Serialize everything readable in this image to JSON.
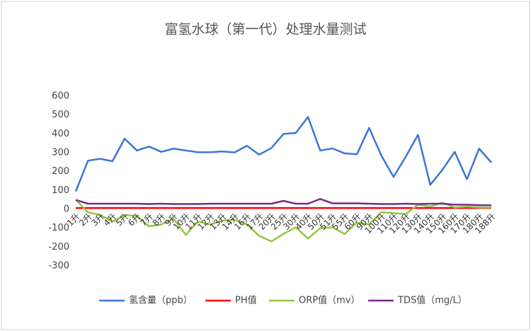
{
  "chart_data": {
    "type": "line",
    "title": "富氢水球（第一代）处理水量测试",
    "categories": [
      "1升",
      "2升",
      "3升",
      "4升",
      "5升",
      "6升",
      "7升",
      "8升",
      "9升",
      "10升",
      "11升",
      "12升",
      "13升",
      "14升",
      "16升",
      "17升",
      "20升",
      "25升",
      "30升",
      "40升",
      "50升",
      "51升",
      "55升",
      "60升",
      "90升",
      "100升",
      "110升",
      "120升",
      "130升",
      "140升",
      "150升",
      "160升",
      "170升",
      "180升",
      "188升"
    ],
    "series": [
      {
        "name": "氢含量（ppb）",
        "color": "#3a76db",
        "values": [
          95,
          258,
          268,
          255,
          375,
          312,
          333,
          305,
          322,
          312,
          303,
          303,
          307,
          302,
          337,
          290,
          325,
          400,
          405,
          490,
          312,
          323,
          297,
          292,
          432,
          285,
          172,
          280,
          395,
          130,
          210,
          305,
          160,
          322,
          248
        ]
      },
      {
        "name": "PH值",
        "color": "#ff0000",
        "values": [
          7,
          7,
          7,
          7,
          7,
          7,
          7,
          7,
          7,
          7,
          7,
          7,
          7,
          7,
          7,
          7,
          7,
          7,
          7,
          7,
          7,
          7,
          7,
          7,
          7,
          7,
          7,
          7,
          7,
          7,
          7,
          7,
          7,
          7,
          7
        ]
      },
      {
        "name": "ORP值（mv）",
        "color": "#92c83e",
        "values": [
          50,
          -15,
          -30,
          -65,
          -30,
          -35,
          -90,
          -80,
          -50,
          -135,
          -65,
          -80,
          -60,
          -55,
          -80,
          -140,
          -170,
          -130,
          -95,
          -155,
          -100,
          -95,
          -130,
          -70,
          -80,
          -15,
          -20,
          -25,
          25,
          15,
          35,
          10,
          15,
          10,
          10
        ]
      },
      {
        "name": "TDS值（mg/L）",
        "color": "#7a2a8c",
        "values": [
          50,
          30,
          30,
          30,
          30,
          30,
          28,
          30,
          28,
          28,
          28,
          30,
          30,
          30,
          30,
          30,
          30,
          45,
          30,
          30,
          55,
          32,
          32,
          32,
          30,
          28,
          28,
          30,
          28,
          30,
          30,
          25,
          25,
          22,
          22
        ]
      }
    ],
    "ylim": [
      -300,
      600
    ],
    "yticks": [
      -300,
      -200,
      -100,
      0,
      100,
      200,
      300,
      400,
      500,
      600
    ],
    "grid": false,
    "legend": "bottom"
  }
}
